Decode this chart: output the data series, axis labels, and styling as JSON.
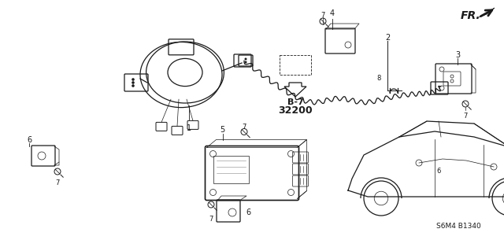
{
  "background_color": "#ffffff",
  "line_color": "#1a1a1a",
  "fig_width": 6.4,
  "fig_height": 3.19,
  "dpi": 100,
  "label_B7": "B-7",
  "label_32200": "32200",
  "label_S6M4": "S6M4 B1340",
  "label_FR": "FR.",
  "gray_light": "#cccccc",
  "gray_mid": "#888888",
  "gray_dark": "#555555"
}
